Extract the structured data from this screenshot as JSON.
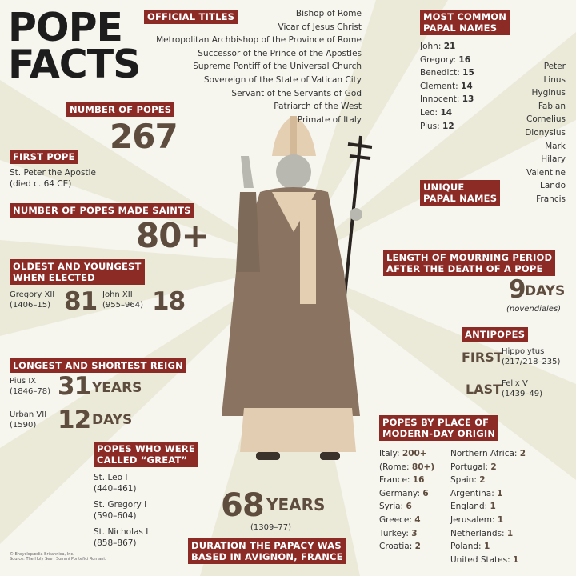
{
  "title": [
    "POPE",
    "FACTS"
  ],
  "official_titles": {
    "label": "OFFICIAL TITLES",
    "items": [
      "Bishop of Rome",
      "Vicar of Jesus Christ",
      "Metropolitan Archbishop of the Province of Rome",
      "Successor of the Prince of the Apostles",
      "Supreme Pontiff of the Universal Church",
      "Sovereign of the State of Vatican City",
      "Servant of the Servants of God",
      "Patriarch of the West",
      "Primate of Italy"
    ]
  },
  "number_of_popes": {
    "label": "NUMBER OF POPES",
    "value": "267"
  },
  "first_pope": {
    "label": "FIRST POPE",
    "lines": [
      "St. Peter the Apostle",
      "(died c. 64 CE)"
    ]
  },
  "saints": {
    "label": "NUMBER OF POPES MADE SAINTS",
    "value": "80+"
  },
  "oldest_youngest": {
    "label": [
      "OLDEST AND YOUNGEST",
      "WHEN ELECTED"
    ],
    "oldest": {
      "name": "Gregory XII",
      "years": "(1406–15)",
      "age": "81"
    },
    "youngest": {
      "name": "John XII",
      "years": "(955–964)",
      "age": "18"
    }
  },
  "reign": {
    "label": "LONGEST AND SHORTEST REIGN",
    "longest": {
      "name": "Pius IX",
      "years": "(1846–78)",
      "value": "31",
      "unit": "YEARS"
    },
    "shortest": {
      "name": "Urban VII",
      "years": "(1590)",
      "value": "12",
      "unit": "DAYS"
    }
  },
  "great": {
    "label": [
      "POPES WHO WERE",
      "CALLED “GREAT”"
    ],
    "items": [
      {
        "name": "St. Leo I",
        "years": "(440–461)"
      },
      {
        "name": "St. Gregory I",
        "years": "(590–604)"
      },
      {
        "name": "St. Nicholas I",
        "years": "(858–867)"
      }
    ]
  },
  "credits": [
    "© Encyclopædia Britannica, Inc.",
    "Source: The Holy See I Sommi Pontefici Romani."
  ],
  "avignon": {
    "value": "68",
    "unit": "YEARS",
    "years": "(1309–77)",
    "label": [
      "DURATION THE PAPACY WAS",
      "BASED IN AVIGNON, FRANCE"
    ]
  },
  "common_names": {
    "label": [
      "MOST COMMON",
      "PAPAL NAMES"
    ],
    "items": [
      {
        "name": "John: ",
        "count": "21"
      },
      {
        "name": "Gregory: ",
        "count": "16"
      },
      {
        "name": "Benedict: ",
        "count": "15"
      },
      {
        "name": "Clement: ",
        "count": "14"
      },
      {
        "name": "Innocent: ",
        "count": "13"
      },
      {
        "name": "Leo: ",
        "count": "14"
      },
      {
        "name": "Pius: ",
        "count": "12"
      }
    ]
  },
  "unique_names": {
    "label": [
      "UNIQUE",
      "PAPAL NAMES"
    ],
    "items": [
      "Peter",
      "Linus",
      "Hyginus",
      "Fabian",
      "Cornelius",
      "Dionysius",
      "Mark",
      "Hilary",
      "Valentine",
      "Lando",
      "Francis"
    ]
  },
  "mourning": {
    "label": [
      "LENGTH OF MOURNING PERIOD",
      "AFTER THE DEATH OF A POPE"
    ],
    "value": "9",
    "unit": "DAYS",
    "note": "(novendiales)"
  },
  "antipopes": {
    "label": "ANTIPOPES",
    "first": {
      "tag": "FIRST",
      "name": "Hippolytus",
      "years": "(217/218–235)"
    },
    "last": {
      "tag": "LAST",
      "name": "Felix V",
      "years": "(1439–49)"
    }
  },
  "origin": {
    "label": [
      "POPES BY PLACE OF",
      "MODERN-DAY ORIGIN"
    ],
    "col1": [
      {
        "name": "Italy: ",
        "count": "200+"
      },
      {
        "name": "(Rome: ",
        "count": "80+)"
      },
      {
        "name": "France: ",
        "count": "16"
      },
      {
        "name": "Germany: ",
        "count": "6"
      },
      {
        "name": "Syria: ",
        "count": "6"
      },
      {
        "name": "Greece: ",
        "count": "4"
      },
      {
        "name": "Turkey: ",
        "count": "3"
      },
      {
        "name": "Croatia: ",
        "count": "2"
      }
    ],
    "col2": [
      {
        "name": "Northern Africa: ",
        "count": "2"
      },
      {
        "name": "Portugal: ",
        "count": "2"
      },
      {
        "name": "Spain: ",
        "count": "2"
      },
      {
        "name": "Argentina: ",
        "count": "1"
      },
      {
        "name": "England: ",
        "count": "1"
      },
      {
        "name": "Jerusalem: ",
        "count": "1"
      },
      {
        "name": "Netherlands: ",
        "count": "1"
      },
      {
        "name": "Poland: ",
        "count": "1"
      },
      {
        "name": "United States: ",
        "count": "1"
      }
    ]
  },
  "colors": {
    "label_bg": "#8c2a26",
    "number": "#5e4c3e",
    "background": "#f6f5ee",
    "rays": "#ebead9"
  }
}
